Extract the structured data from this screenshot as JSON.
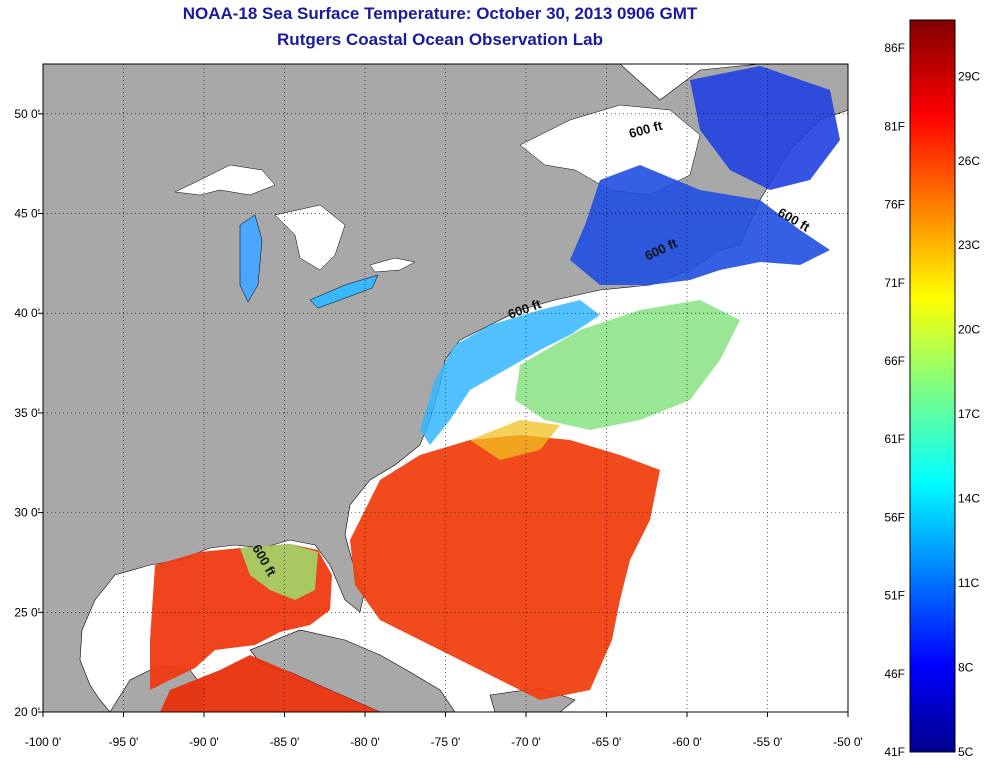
{
  "title": "NOAA-18 Sea Surface Temperature:  October 30, 2013 0906 GMT",
  "subtitle": "Rutgers Coastal Ocean Observation Lab",
  "map": {
    "lon_range": [
      -100,
      -50
    ],
    "lat_range": [
      20,
      52.5
    ],
    "lon_ticks": [
      "-100 0'",
      "-95 0'",
      "-90 0'",
      "-85 0'",
      "-80 0'",
      "-75 0'",
      "-70 0'",
      "-65 0'",
      "-60 0'",
      "-55 0'",
      "-50 0'"
    ],
    "lat_ticks": [
      "50 0'",
      "45 0'",
      "40 0'",
      "35 0'",
      "30 0'",
      "25 0'",
      "20 0'"
    ],
    "lon_values": [
      -100,
      -95,
      -90,
      -85,
      -80,
      -75,
      -70,
      -65,
      -60,
      -55,
      -50
    ],
    "lat_values": [
      50,
      45,
      40,
      35,
      30,
      25,
      20
    ],
    "isobath_labels": [
      "600 ft",
      "600 ft",
      "600 ft",
      "600 ft",
      "600 ft"
    ],
    "land_color": "#a8a8a8",
    "no_data_color": "#ffffff"
  },
  "colorbar": {
    "fahrenheit_labels": [
      "86F",
      "81F",
      "76F",
      "71F",
      "66F",
      "61F",
      "56F",
      "51F",
      "46F",
      "41F"
    ],
    "fahrenheit_values": [
      86,
      81,
      76,
      71,
      66,
      61,
      56,
      51,
      46,
      41
    ],
    "celsius_labels": [
      "29C",
      "26C",
      "23C",
      "20C",
      "17C",
      "14C",
      "11C",
      "8C",
      "5C"
    ],
    "celsius_values": [
      29,
      26,
      23,
      20,
      17,
      14,
      11,
      8,
      5
    ],
    "range_c": [
      5,
      31
    ],
    "colormap": "jet"
  }
}
